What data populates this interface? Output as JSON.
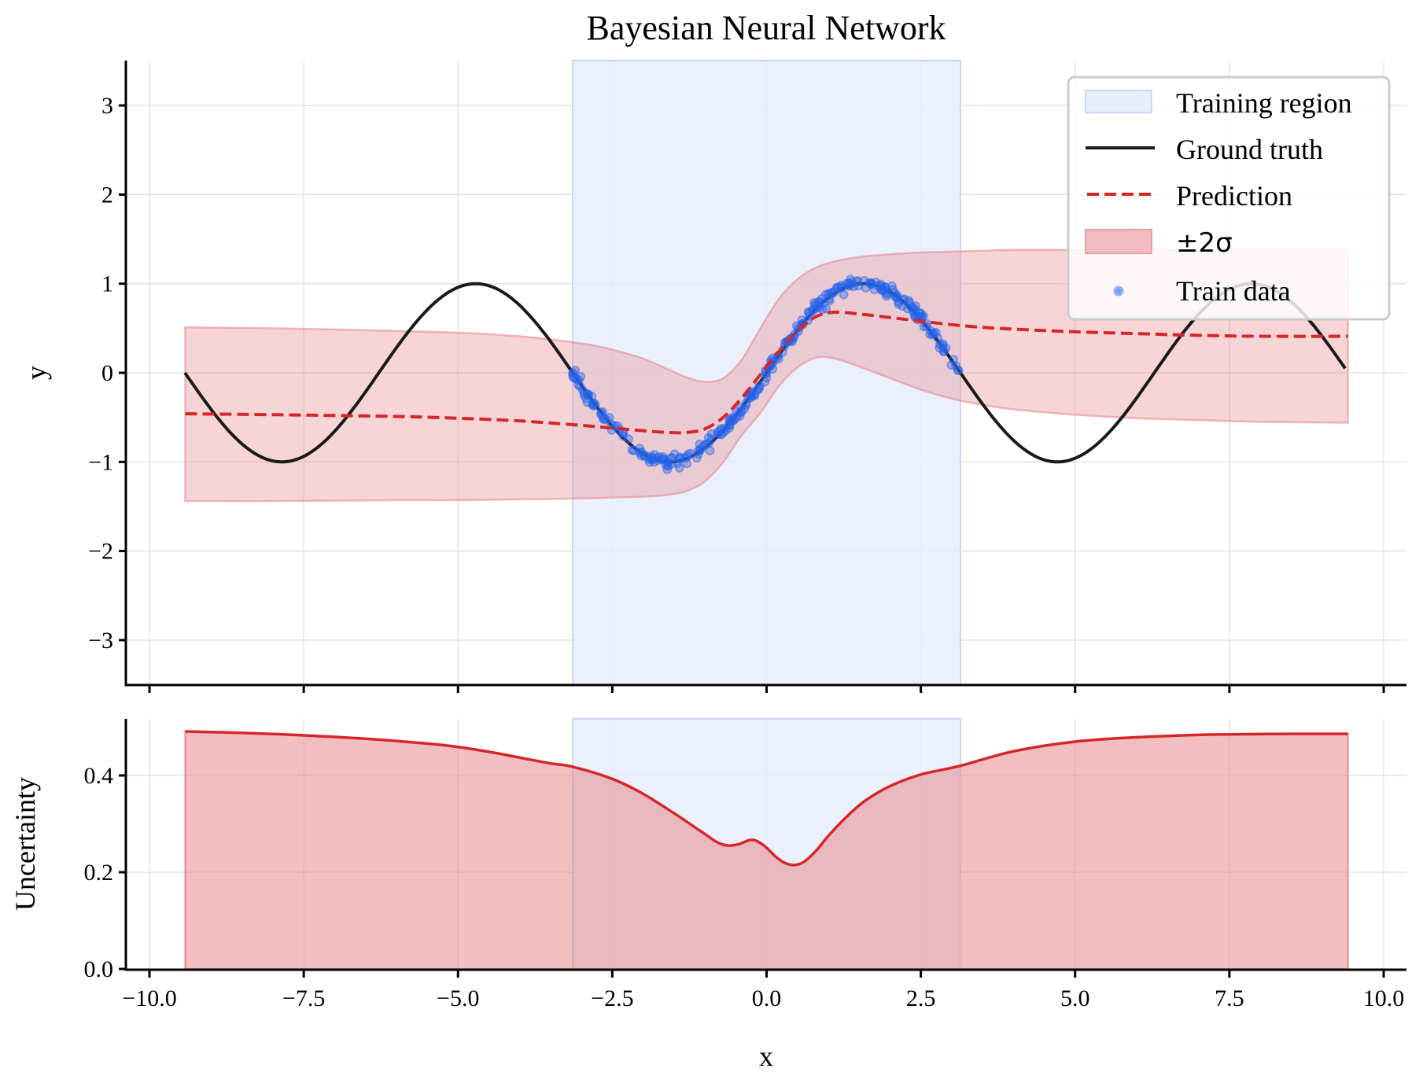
{
  "chart_data": {
    "type": "line",
    "title": "Bayesian Neural Network",
    "xlabel": "x",
    "xlim": [
      -10.6,
      10.35
    ],
    "x_ticks": [
      -10.0,
      -7.5,
      -5.0,
      -2.5,
      0.0,
      2.5,
      5.0,
      7.5,
      10.0
    ],
    "x_tick_labels": [
      "−10.0",
      "−7.5",
      "−5.0",
      "−2.5",
      "0.0",
      "2.5",
      "5.0",
      "7.5",
      "10.0"
    ],
    "grid": true,
    "panels": [
      {
        "name": "prediction",
        "ylabel": "y",
        "ylim": [
          -3.5,
          3.5
        ],
        "y_ticks": [
          -3,
          -2,
          -1,
          0,
          1,
          2,
          3
        ],
        "y_tick_labels": [
          "−3",
          "−2",
          "−1",
          "0",
          "1",
          "2",
          "3"
        ],
        "training_region": [
          -3.1416,
          3.1416
        ],
        "series": [
          {
            "name": "Ground truth",
            "kind": "line",
            "color": "#1a1a1a",
            "function": "sin(x)",
            "x_range": [
              -9.4248,
              9.4248
            ]
          },
          {
            "name": "Prediction",
            "kind": "dashed-line",
            "color": "#d62728",
            "x": [
              -9.42,
              -8,
              -6,
              -5,
              -4,
              -3,
              -2.5,
              -2,
              -1.6,
              -1.3,
              -1.0,
              -0.7,
              -0.4,
              -0.1,
              0.2,
              0.5,
              0.8,
              1.1,
              1.5,
              2.0,
              2.5,
              3.0,
              3.5,
              4,
              5,
              6,
              7,
              8,
              9.42
            ],
            "values": [
              -0.46,
              -0.47,
              -0.49,
              -0.51,
              -0.54,
              -0.59,
              -0.62,
              -0.65,
              -0.67,
              -0.67,
              -0.63,
              -0.5,
              -0.28,
              -0.02,
              0.24,
              0.47,
              0.63,
              0.68,
              0.66,
              0.62,
              0.58,
              0.54,
              0.51,
              0.49,
              0.46,
              0.44,
              0.42,
              0.41,
              0.41
            ]
          },
          {
            "name": "±2σ",
            "kind": "band",
            "color": "#e8838a",
            "x": [
              -9.42,
              -8,
              -6,
              -5,
              -4,
              -3,
              -2.5,
              -2,
              -1.6,
              -1.3,
              -1.0,
              -0.7,
              -0.4,
              -0.1,
              0.2,
              0.5,
              0.8,
              1.1,
              1.5,
              2.0,
              2.5,
              3.0,
              3.5,
              4,
              5,
              6,
              7,
              8,
              9.42
            ],
            "upper": [
              0.51,
              0.5,
              0.47,
              0.45,
              0.41,
              0.33,
              0.26,
              0.16,
              0.04,
              -0.05,
              -0.1,
              -0.06,
              0.15,
              0.5,
              0.83,
              1.05,
              1.18,
              1.25,
              1.3,
              1.33,
              1.35,
              1.36,
              1.37,
              1.38,
              1.38,
              1.38,
              1.38,
              1.38,
              1.38
            ],
            "lower": [
              -1.44,
              -1.44,
              -1.43,
              -1.43,
              -1.42,
              -1.41,
              -1.4,
              -1.39,
              -1.37,
              -1.33,
              -1.22,
              -1.0,
              -0.7,
              -0.45,
              -0.15,
              0.06,
              0.17,
              0.16,
              0.07,
              -0.06,
              -0.19,
              -0.29,
              -0.36,
              -0.41,
              -0.47,
              -0.51,
              -0.53,
              -0.55,
              -0.56
            ]
          },
          {
            "name": "Train data",
            "kind": "scatter",
            "color": "#2563eb",
            "count": 300,
            "x_range": [
              -3.1416,
              3.1416
            ],
            "noise_std": 0.05,
            "function": "sin(x)"
          }
        ]
      },
      {
        "name": "uncertainty",
        "ylabel": "Uncertainty",
        "ylim": [
          0.0,
          0.517
        ],
        "y_ticks": [
          0.0,
          0.2,
          0.4
        ],
        "y_tick_labels": [
          "0.0",
          "0.2",
          "0.4"
        ],
        "training_region": [
          -3.1416,
          3.1416
        ],
        "series": [
          {
            "name": "Uncertainty",
            "kind": "filled-line",
            "color": "#d62728",
            "x": [
              -9.42,
              -8.5,
              -7.5,
              -6.5,
              -5.5,
              -5.0,
              -4.5,
              -4.0,
              -3.5,
              -3.14,
              -2.5,
              -2.0,
              -1.5,
              -1.0,
              -0.8,
              -0.63,
              -0.45,
              -0.24,
              -0.05,
              0.15,
              0.3,
              0.45,
              0.6,
              0.8,
              1.0,
              1.3,
              1.6,
              2.0,
              2.5,
              3.14,
              4.0,
              5.0,
              6.0,
              7.0,
              7.5,
              8.5,
              9.42
            ],
            "values": [
              0.491,
              0.488,
              0.483,
              0.476,
              0.466,
              0.459,
              0.449,
              0.437,
              0.425,
              0.418,
              0.393,
              0.362,
              0.322,
              0.279,
              0.262,
              0.255,
              0.258,
              0.267,
              0.256,
              0.232,
              0.219,
              0.215,
              0.221,
              0.244,
              0.275,
              0.315,
              0.348,
              0.378,
              0.402,
              0.42,
              0.45,
              0.47,
              0.479,
              0.484,
              0.485,
              0.486,
              0.486
            ]
          }
        ]
      }
    ],
    "legend": {
      "position": "upper right",
      "entries": [
        "Training region",
        "Ground truth",
        "Prediction",
        "±2σ",
        "Train data"
      ]
    }
  },
  "colors": {
    "training_region": "#e8eefb",
    "training_region_edge": "#c9d6f5",
    "band_fill": "#e8838a",
    "uncertainty_fill": "#e8898d",
    "prediction": "#d62728",
    "ground_truth": "#1a1a1a",
    "train_data": "#2563eb",
    "grid": "#e3e3e3"
  }
}
